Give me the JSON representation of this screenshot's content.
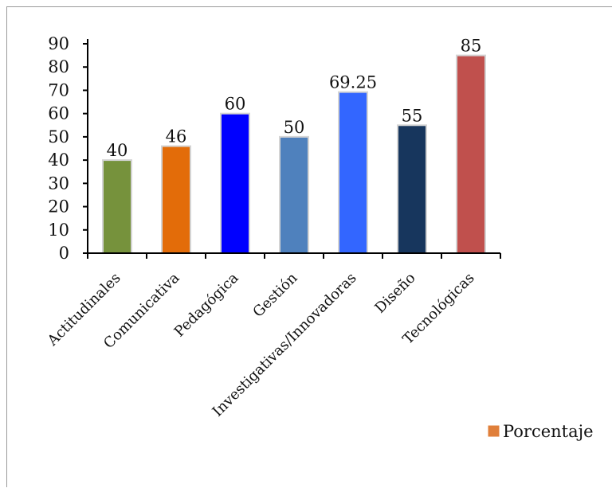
{
  "chart_data": {
    "type": "bar",
    "categories": [
      "Actitudinales",
      "Comunicativa",
      "Pedagógica",
      "Gestión",
      "Investigativas/Innovadoras",
      "Diseño",
      "Tecnológicas"
    ],
    "series": [
      {
        "name": "Porcentaje",
        "values": [
          40,
          46,
          60,
          50,
          69.25,
          55,
          85
        ],
        "value_labels": [
          "40",
          "46",
          "60",
          "50",
          "69.25",
          "55",
          "85"
        ],
        "legend_color": "#e07f3a"
      }
    ],
    "bar_colors": [
      "#76923c",
      "#e36c09",
      "#0000ff",
      "#4f81bd",
      "#3366ff",
      "#17365d",
      "#c0504d"
    ],
    "ylim": [
      0,
      90
    ],
    "yticks": [
      "0",
      "10",
      "20",
      "30",
      "40",
      "50",
      "60",
      "70",
      "80",
      "90"
    ],
    "ytick_values": [
      0,
      10,
      20,
      30,
      40,
      50,
      60,
      70,
      80,
      90
    ],
    "grid": false,
    "legend_position": "bottom-right",
    "title": "",
    "xlabel": "",
    "ylabel": ""
  }
}
